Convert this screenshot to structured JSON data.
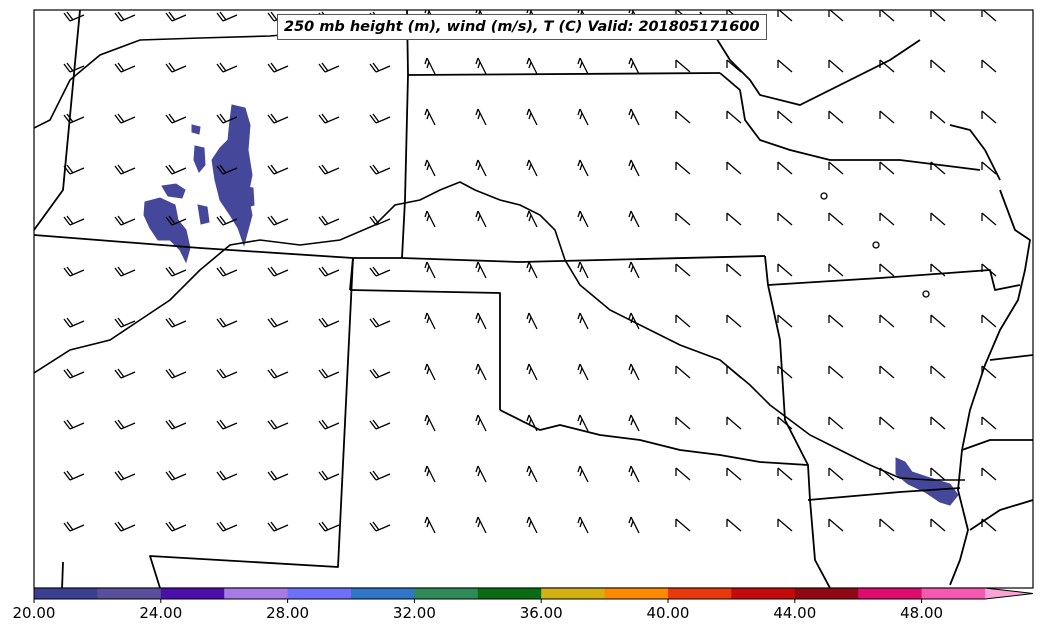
{
  "map": {
    "title": "250 mb height (m), wind (m/s), T (C) Valid: 201805171600"
  },
  "colorbar": {
    "ticks": [
      "20.00",
      "24.00",
      "28.00",
      "32.00",
      "36.00",
      "40.00",
      "44.00",
      "48.00"
    ],
    "colors": [
      "#3b3f92",
      "#5a4f9e",
      "#4b0faa",
      "#a77ae6",
      "#6e70f7",
      "#2f76c8",
      "#2e8b57",
      "#0b6b14",
      "#d4b012",
      "#ff8a00",
      "#e8380c",
      "#c40a0a",
      "#8f0a14",
      "#dd0c6e",
      "#f559b0",
      "#f9a3d7"
    ],
    "extend": "max"
  },
  "shading": {
    "fill_color": "#45489a"
  }
}
